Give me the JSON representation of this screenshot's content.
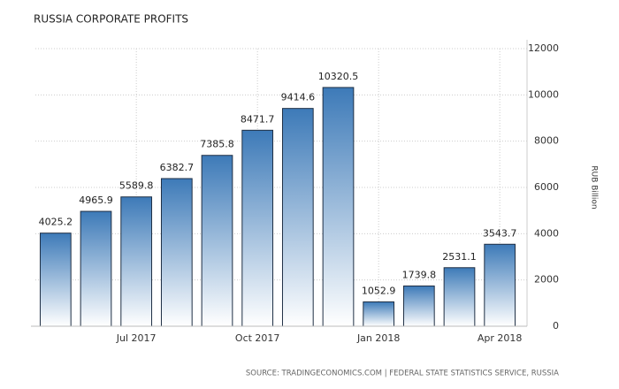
{
  "chart_data": {
    "type": "bar",
    "title": "RUSSIA CORPORATE PROFITS",
    "categories": [
      null,
      null,
      "Jul 2017",
      null,
      null,
      "Oct 2017",
      null,
      null,
      "Jan 2018",
      null,
      null,
      "Apr 2018"
    ],
    "values": [
      4025.2,
      4965.9,
      5589.8,
      6382.7,
      7385.8,
      8471.7,
      9414.6,
      10320.5,
      1052.9,
      1739.8,
      2531.1,
      3543.7
    ],
    "color": "#3d7ab8",
    "ylim": [
      0,
      12000
    ],
    "yticks": [
      0,
      2000,
      4000,
      6000,
      8000,
      10000,
      12000
    ],
    "y_axis_label": "RUB Billion",
    "y_axis_side": "right",
    "grid": true,
    "source": "SOURCE: TRADINGECONOMICS.COM | FEDERAL STATE STATISTICS SERVICE, RUSSIA"
  }
}
